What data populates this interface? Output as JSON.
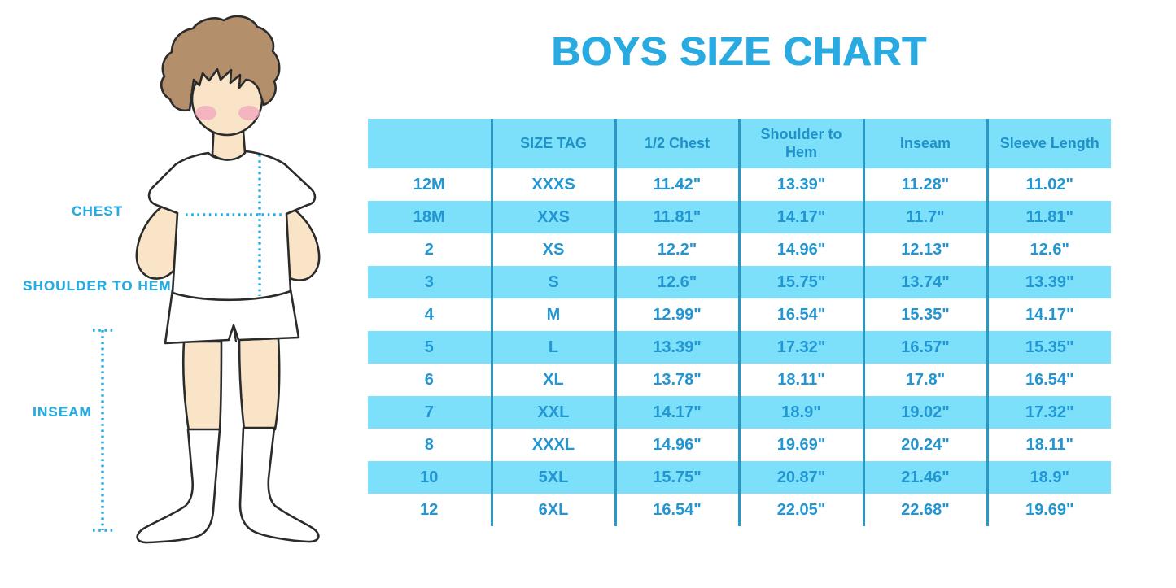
{
  "title": "BOYS SIZE CHART",
  "figure": {
    "description": "boy-in-white-tshirt-shorts-and-socks-with-measurement-guides",
    "labels": {
      "chest": "CHEST",
      "shoulder_to_hem": "SHOULDER TO HEM",
      "inseam": "INSEAM"
    }
  },
  "colors": {
    "accent_blue": "#29ABE2",
    "table_fill_light_blue": "#7CE0FA",
    "table_text_blue": "#2196D3",
    "table_divider_blue": "#2A98C4",
    "dotted_guide_blue": "#29ABE2",
    "skin": "#F9E4C8",
    "hair_brown": "#B3906B",
    "blush_pink": "#F3A9BE",
    "outline_dark": "#2B2B2B"
  },
  "chart_data": {
    "type": "table",
    "title": "BOYS SIZE CHART",
    "columns": [
      "",
      "SIZE TAG",
      "1/2 Chest",
      "Shoulder to Hem",
      "Inseam",
      "Sleeve Length"
    ],
    "rows": [
      [
        "12M",
        "XXXS",
        "11.42\"",
        "13.39\"",
        "11.28\"",
        "11.02\""
      ],
      [
        "18M",
        "XXS",
        "11.81\"",
        "14.17\"",
        "11.7\"",
        "11.81\""
      ],
      [
        "2",
        "XS",
        "12.2\"",
        "14.96\"",
        "12.13\"",
        "12.6\""
      ],
      [
        "3",
        "S",
        "12.6\"",
        "15.75\"",
        "13.74\"",
        "13.39\""
      ],
      [
        "4",
        "M",
        "12.99\"",
        "16.54\"",
        "15.35\"",
        "14.17\""
      ],
      [
        "5",
        "L",
        "13.39\"",
        "17.32\"",
        "16.57\"",
        "15.35\""
      ],
      [
        "6",
        "XL",
        "13.78\"",
        "18.11\"",
        "17.8\"",
        "16.54\""
      ],
      [
        "7",
        "XXL",
        "14.17\"",
        "18.9\"",
        "19.02\"",
        "17.32\""
      ],
      [
        "8",
        "XXXL",
        "14.96\"",
        "19.69\"",
        "20.24\"",
        "18.11\""
      ],
      [
        "10",
        "5XL",
        "15.75\"",
        "20.87\"",
        "21.46\"",
        "18.9\""
      ],
      [
        "12",
        "6XL",
        "16.54\"",
        "22.05\"",
        "22.68\"",
        "19.69\""
      ]
    ],
    "layout": {
      "header_fill": "#7CE0FA",
      "row_alternation": "white-then-light-blue",
      "grid": "vertical-dividers-only"
    }
  }
}
